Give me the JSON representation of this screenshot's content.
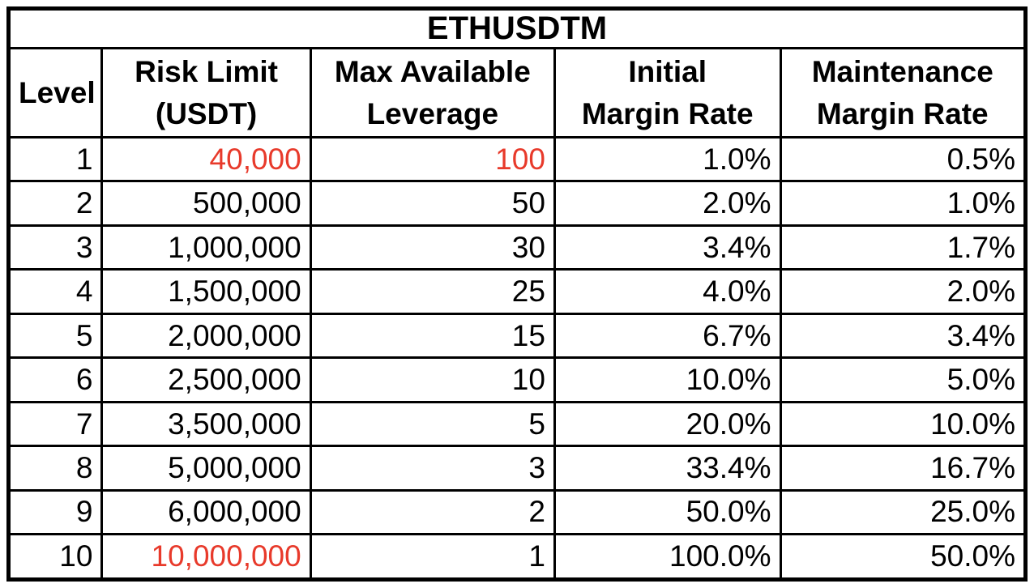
{
  "table": {
    "title": "ETHUSDTM",
    "headers": [
      "Level",
      "Risk Limit\n(USDT)",
      "Max Available\nLeverage",
      "Initial\nMargin Rate",
      "Maintenance\nMargin Rate"
    ],
    "rows": [
      [
        "1",
        "40,000",
        "100",
        "1.0%",
        "0.5%"
      ],
      [
        "2",
        "500,000",
        "50",
        "2.0%",
        "1.0%"
      ],
      [
        "3",
        "1,000,000",
        "30",
        "3.4%",
        "1.7%"
      ],
      [
        "4",
        "1,500,000",
        "25",
        "4.0%",
        "2.0%"
      ],
      [
        "5",
        "2,000,000",
        "15",
        "6.7%",
        "3.4%"
      ],
      [
        "6",
        "2,500,000",
        "10",
        "10.0%",
        "5.0%"
      ],
      [
        "7",
        "3,500,000",
        "5",
        "20.0%",
        "10.0%"
      ],
      [
        "8",
        "5,000,000",
        "3",
        "33.4%",
        "16.7%"
      ],
      [
        "9",
        "6,000,000",
        "2",
        "50.0%",
        "25.0%"
      ],
      [
        "10",
        "10,000,000",
        "1",
        "100.0%",
        "50.0%"
      ]
    ],
    "red_cells": [
      [
        0,
        1
      ],
      [
        0,
        2
      ],
      [
        9,
        1
      ]
    ]
  },
  "colors": {
    "highlight_red": "#e83a2b",
    "text": "#000000",
    "border": "#000000",
    "background": "#ffffff"
  }
}
